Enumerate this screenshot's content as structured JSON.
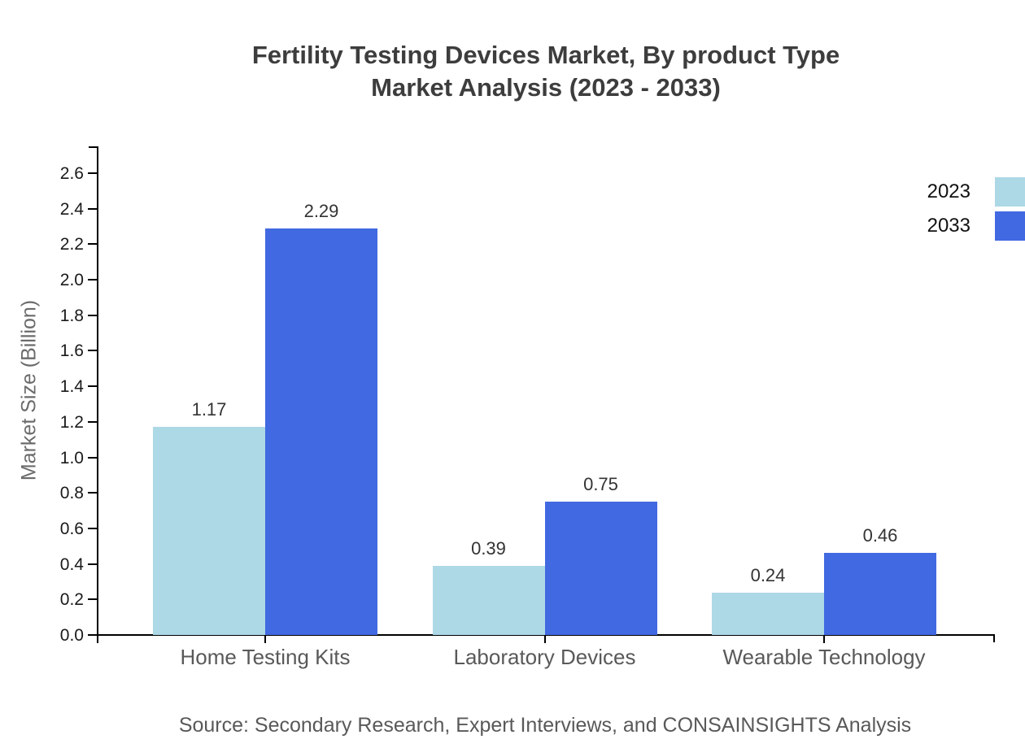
{
  "title": {
    "line1": "Fertility Testing Devices Market, By product Type",
    "line2": "Market Analysis (2023 - 2033)"
  },
  "source_text": "Source: Secondary Research, Expert Interviews, and CONSAINSIGHTS Analysis",
  "chart_data": {
    "type": "bar",
    "title": "Fertility Testing Devices Market, By product Type Market Analysis (2023 - 2033)",
    "categories": [
      "Home Testing Kits",
      "Laboratory Devices",
      "Wearable Technology"
    ],
    "series": [
      {
        "name": "2023",
        "color": "#ADD8E6",
        "values": [
          1.17,
          0.39,
          0.24
        ]
      },
      {
        "name": "2033",
        "color": "#4169E1",
        "values": [
          2.29,
          0.75,
          0.46
        ]
      }
    ],
    "xlabel": "",
    "ylabel": "Market Size (Billion)",
    "ylim": [
      0,
      2.75
    ],
    "yticks": [
      0.0,
      0.2,
      0.4,
      0.6,
      0.8,
      1.0,
      1.2,
      1.4,
      1.6,
      1.8,
      2.0,
      2.2,
      2.4,
      2.6
    ],
    "grid": false,
    "legend_position": "top-right",
    "bar_value_labels": true,
    "colors": {
      "axis": "#000000",
      "title_text": "#3d3d3d",
      "tick_label_text": "#1a1a1a",
      "category_label_text": "#595959",
      "value_label_text": "#333333",
      "y_axis_label_text": "#6b6b6b",
      "source_text": "#595959",
      "background": "#ffffff"
    }
  }
}
